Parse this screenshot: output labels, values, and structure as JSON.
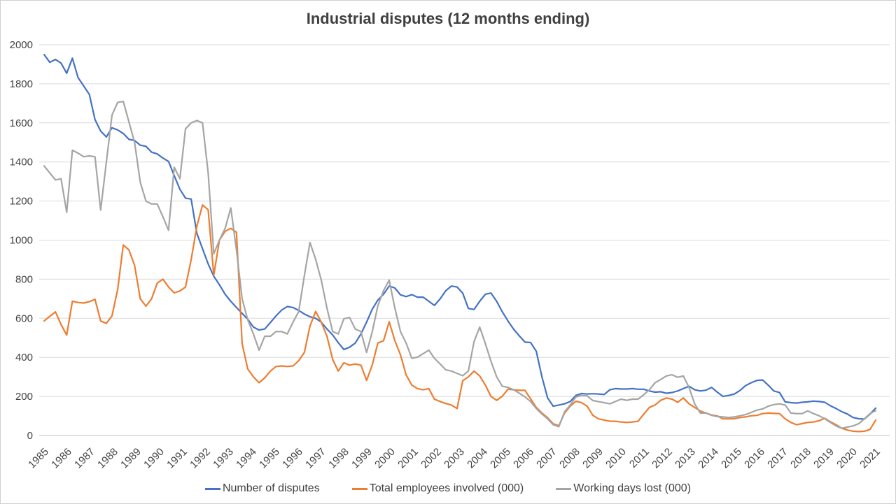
{
  "chart": {
    "title": "Industrial disputes (12 months ending)",
    "colors": {
      "grid": "#d9d9d9",
      "axis_line": "#bfbfbf",
      "tick_text": "#424242",
      "title_text": "#404040"
    }
  },
  "chart_data": {
    "type": "line",
    "title": "Industrial disputes (12 months ending)",
    "xlabel": "",
    "ylabel": "",
    "ylim": [
      0,
      2000
    ],
    "y_tick_step": 200,
    "y_ticks": [
      0,
      200,
      400,
      600,
      800,
      1000,
      1200,
      1400,
      1600,
      1800,
      2000
    ],
    "grid": "horizontal",
    "legend_position": "bottom",
    "x_axis_labels": [
      "1985",
      "1986",
      "1987",
      "1988",
      "1989",
      "1990",
      "1991",
      "1992",
      "1993",
      "1994",
      "1995",
      "1996",
      "1997",
      "1998",
      "1999",
      "2000",
      "2001",
      "2002",
      "2003",
      "2004",
      "2005",
      "2006",
      "2007",
      "2008",
      "2009",
      "2010",
      "2011",
      "2012",
      "2013",
      "2014",
      "2015",
      "2016",
      "2017",
      "2018",
      "2019",
      "2020",
      "2021"
    ],
    "x_start_year": 1985,
    "x_step_years": 0.25,
    "points_per_year": 4,
    "series": [
      {
        "name": "Number of disputes",
        "color": "#4472C4",
        "values": [
          1950,
          1910,
          1925,
          1906,
          1854,
          1931,
          1832,
          1789,
          1745,
          1617,
          1558,
          1528,
          1575,
          1564,
          1546,
          1516,
          1510,
          1486,
          1480,
          1450,
          1441,
          1420,
          1403,
          1330,
          1260,
          1215,
          1210,
          1035,
          956,
          878,
          815,
          771,
          723,
          687,
          655,
          625,
          595,
          555,
          540,
          545,
          578,
          612,
          642,
          660,
          655,
          640,
          622,
          608,
          600,
          580,
          545,
          515,
          475,
          440,
          452,
          473,
          520,
          580,
          646,
          693,
          723,
          765,
          755,
          720,
          711,
          721,
          708,
          708,
          687,
          666,
          699,
          741,
          765,
          760,
          729,
          650,
          645,
          687,
          723,
          729,
          687,
          633,
          586,
          544,
          510,
          478,
          476,
          431,
          300,
          192,
          150,
          156,
          162,
          174,
          205,
          215,
          212,
          214,
          212,
          210,
          234,
          240,
          238,
          238,
          240,
          237,
          237,
          228,
          222,
          224,
          216,
          220,
          228,
          240,
          252,
          234,
          228,
          232,
          246,
          222,
          200,
          205,
          212,
          230,
          255,
          270,
          282,
          284,
          258,
          228,
          220,
          172,
          168,
          166,
          170,
          172,
          176,
          174,
          170,
          152,
          138,
          122,
          110,
          92,
          86,
          84,
          110,
          140
        ]
      },
      {
        "name": "Total employees involved (000)",
        "color": "#ED7D31",
        "values": [
          586,
          610,
          633,
          568,
          514,
          687,
          681,
          678,
          685,
          697,
          586,
          574,
          612,
          747,
          975,
          950,
          870,
          700,
          662,
          700,
          780,
          800,
          760,
          730,
          740,
          760,
          900,
          1070,
          1180,
          1155,
          820,
          1000,
          1045,
          1060,
          1040,
          470,
          341,
          300,
          270,
          295,
          330,
          353,
          356,
          353,
          356,
          383,
          425,
          560,
          635,
          580,
          508,
          390,
          330,
          372,
          360,
          366,
          360,
          282,
          360,
          473,
          485,
          582,
          485,
          413,
          310,
          258,
          240,
          234,
          240,
          186,
          174,
          164,
          156,
          138,
          280,
          300,
          330,
          305,
          258,
          200,
          180,
          201,
          237,
          234,
          231,
          231,
          188,
          144,
          115,
          91,
          60,
          50,
          115,
          150,
          175,
          168,
          150,
          103,
          85,
          79,
          73,
          73,
          69,
          67,
          69,
          73,
          110,
          144,
          156,
          180,
          192,
          186,
          170,
          192,
          162,
          144,
          125,
          115,
          105,
          100,
          85,
          85,
          86,
          92,
          95,
          101,
          103,
          112,
          115,
          113,
          112,
          85,
          67,
          55,
          61,
          67,
          69,
          76,
          88,
          70,
          55,
          37,
          28,
          22,
          20,
          22,
          31,
          79
        ]
      },
      {
        "name": "Working days lost (000)",
        "color": "#A5A5A5",
        "values": [
          1380,
          1344,
          1308,
          1314,
          1142,
          1460,
          1445,
          1427,
          1431,
          1427,
          1154,
          1398,
          1640,
          1705,
          1710,
          1605,
          1500,
          1296,
          1200,
          1185,
          1185,
          1120,
          1050,
          1373,
          1314,
          1570,
          1600,
          1612,
          1600,
          1344,
          930,
          1000,
          1060,
          1165,
          950,
          700,
          592,
          520,
          437,
          508,
          508,
          532,
          532,
          520,
          580,
          634,
          818,
          988,
          902,
          795,
          651,
          532,
          520,
          598,
          604,
          545,
          532,
          425,
          530,
          664,
          741,
          795,
          652,
          532,
          473,
          395,
          401,
          419,
          437,
          395,
          366,
          336,
          330,
          318,
          306,
          330,
          480,
          555,
          470,
          380,
          300,
          252,
          246,
          234,
          216,
          198,
          174,
          138,
          110,
          85,
          55,
          45,
          121,
          156,
          197,
          205,
          203,
          179,
          173,
          168,
          162,
          174,
          186,
          180,
          186,
          186,
          209,
          234,
          270,
          287,
          305,
          311,
          298,
          305,
          246,
          162,
          115,
          115,
          103,
          97,
          95,
          92,
          95,
          101,
          107,
          118,
          130,
          136,
          150,
          158,
          162,
          156,
          115,
          112,
          112,
          126,
          112,
          101,
          85,
          67,
          49,
          37,
          43,
          49,
          61,
          85,
          112,
          127
        ]
      }
    ]
  }
}
